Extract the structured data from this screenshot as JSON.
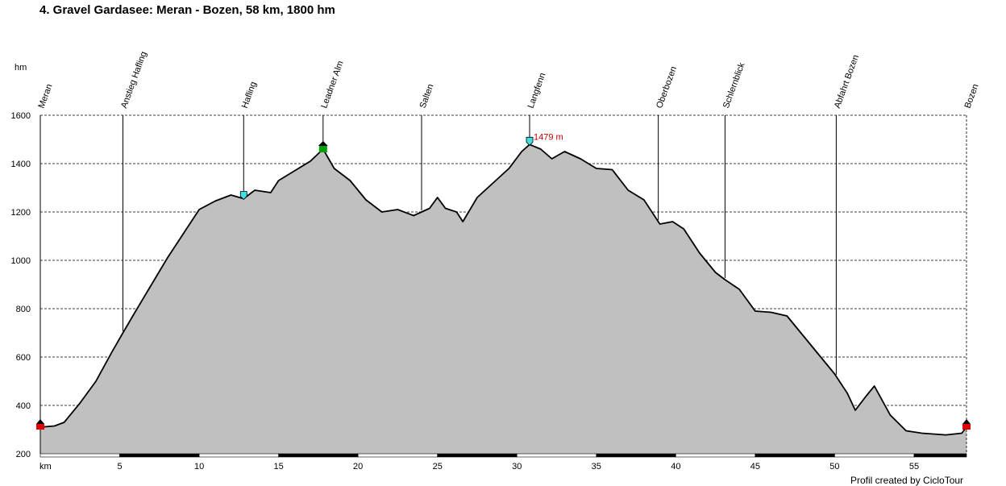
{
  "page": {
    "title": "4. Gravel Gardasee: Meran - Bozen, 58 km, 1800 hm",
    "credit": "Profil created by CicloTour"
  },
  "colors": {
    "fill": "#c0c0c0",
    "line": "#000000",
    "grid": "#000000",
    "max_label": "#c00000",
    "start_marker": "#e00000",
    "summit_marker": "#00a000",
    "point_marker": "#40e0e0"
  },
  "chart_data": {
    "type": "area",
    "title": "4. Gravel Gardasee: Meran - Bozen, 58 km, 1800 hm",
    "xlabel": "km",
    "ylabel": "hm",
    "xlim": [
      0,
      58.3
    ],
    "ylim": [
      200,
      1600
    ],
    "x_ticks": [
      5,
      10,
      15,
      20,
      25,
      30,
      35,
      40,
      45,
      50,
      55
    ],
    "y_ticks": [
      200,
      400,
      600,
      800,
      1000,
      1200,
      1400,
      1600
    ],
    "grid": true,
    "max_annotation": {
      "x": 30.8,
      "y": 1479,
      "label": "1479 m"
    },
    "waypoints": [
      {
        "name": "Meran",
        "km": 0,
        "marker": "start"
      },
      {
        "name": "Anstieg Hafling",
        "km": 5.2,
        "marker": "none"
      },
      {
        "name": "Hafling",
        "km": 12.8,
        "marker": "point"
      },
      {
        "name": "Leadner Alm",
        "km": 17.8,
        "marker": "summit"
      },
      {
        "name": "Salten",
        "km": 24.0,
        "marker": "none"
      },
      {
        "name": "Langfenn",
        "km": 30.8,
        "marker": "point"
      },
      {
        "name": "Oberbozen",
        "km": 38.9,
        "marker": "none"
      },
      {
        "name": "Schlernblick",
        "km": 43.1,
        "marker": "none"
      },
      {
        "name": "Abfahrt Bozen",
        "km": 50.1,
        "marker": "none"
      },
      {
        "name": "Bozen",
        "km": 58.3,
        "marker": "start"
      }
    ],
    "profile": {
      "x": [
        0,
        0.9,
        1.5,
        2.5,
        3.5,
        4.5,
        5.2,
        6,
        7,
        8,
        9,
        10,
        11,
        12,
        12.8,
        13.5,
        14.5,
        15,
        16,
        17,
        17.8,
        18.5,
        19.5,
        20.5,
        21.5,
        22.5,
        23.5,
        24,
        24.5,
        25,
        25.5,
        26.2,
        26.6,
        27.5,
        28.5,
        29.5,
        30.3,
        30.8,
        31.5,
        32.2,
        33,
        34,
        35,
        36,
        37,
        38,
        39,
        39.8,
        40.5,
        41.5,
        42.5,
        43.1,
        44,
        45,
        46,
        47,
        48,
        49,
        50,
        50.8,
        51.3,
        52,
        52.5,
        53.5,
        54.5,
        55.5,
        57,
        58,
        58.3
      ],
      "y": [
        310,
        315,
        330,
        410,
        500,
        620,
        700,
        790,
        900,
        1010,
        1110,
        1210,
        1245,
        1270,
        1255,
        1290,
        1280,
        1330,
        1370,
        1410,
        1460,
        1380,
        1330,
        1250,
        1200,
        1210,
        1185,
        1200,
        1215,
        1260,
        1215,
        1200,
        1160,
        1260,
        1320,
        1380,
        1450,
        1479,
        1460,
        1420,
        1450,
        1420,
        1380,
        1375,
        1290,
        1250,
        1150,
        1160,
        1130,
        1030,
        950,
        920,
        880,
        790,
        785,
        770,
        690,
        610,
        530,
        450,
        380,
        440,
        480,
        360,
        295,
        285,
        278,
        285,
        310
      ]
    }
  }
}
